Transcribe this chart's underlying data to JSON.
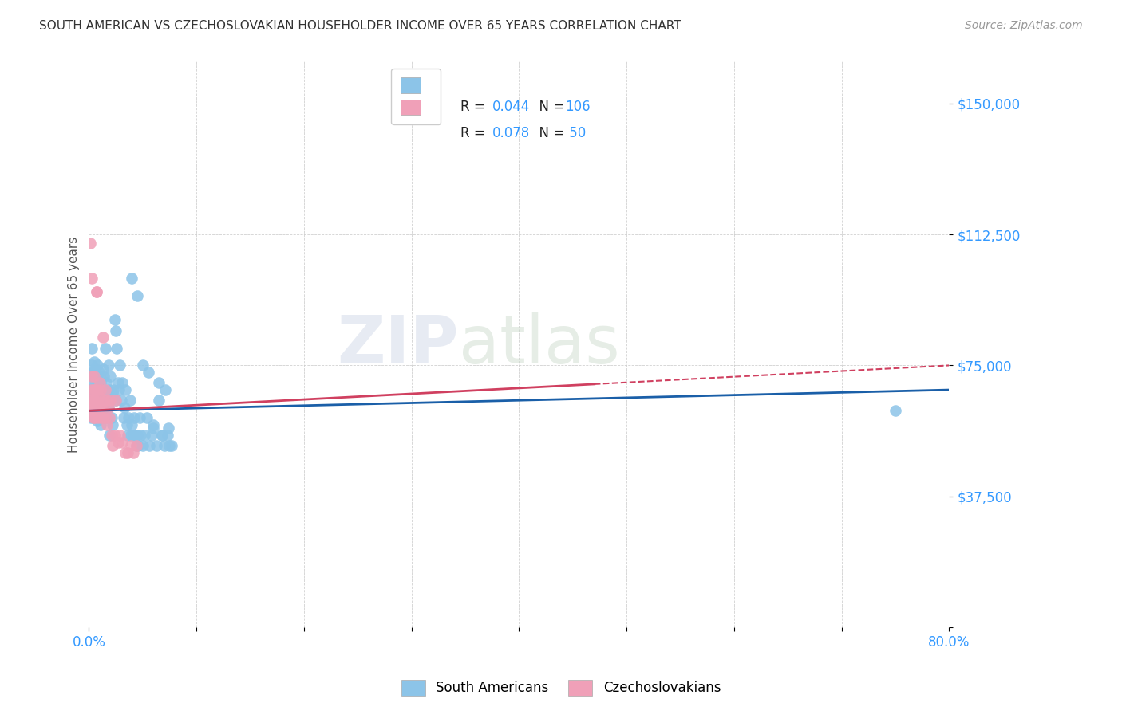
{
  "title": "SOUTH AMERICAN VS CZECHOSLOVAKIAN HOUSEHOLDER INCOME OVER 65 YEARS CORRELATION CHART",
  "source": "Source: ZipAtlas.com",
  "ylabel": "Householder Income Over 65 years",
  "yticks": [
    0,
    37500,
    75000,
    112500,
    150000
  ],
  "ytick_labels": [
    "",
    "$37,500",
    "$75,000",
    "$112,500",
    "$150,000"
  ],
  "blue_R": 0.044,
  "blue_N": 106,
  "pink_R": 0.078,
  "pink_N": 50,
  "blue_color": "#8cc4e8",
  "pink_color": "#f0a0b8",
  "blue_line_color": "#1a5fa8",
  "pink_line_color": "#d04060",
  "watermark_zip": "ZIP",
  "watermark_atlas": "atlas",
  "xlim": [
    0.0,
    0.8
  ],
  "ylim": [
    0,
    162000
  ],
  "blue_scatter_x": [
    0.001,
    0.001,
    0.002,
    0.002,
    0.002,
    0.003,
    0.003,
    0.003,
    0.003,
    0.004,
    0.004,
    0.004,
    0.004,
    0.005,
    0.005,
    0.005,
    0.005,
    0.006,
    0.006,
    0.006,
    0.006,
    0.007,
    0.007,
    0.007,
    0.008,
    0.008,
    0.008,
    0.009,
    0.009,
    0.009,
    0.01,
    0.01,
    0.01,
    0.011,
    0.011,
    0.011,
    0.012,
    0.012,
    0.013,
    0.013,
    0.014,
    0.014,
    0.015,
    0.015,
    0.016,
    0.016,
    0.017,
    0.018,
    0.018,
    0.019,
    0.019,
    0.02,
    0.02,
    0.021,
    0.022,
    0.022,
    0.023,
    0.024,
    0.025,
    0.025,
    0.026,
    0.027,
    0.028,
    0.029,
    0.03,
    0.031,
    0.032,
    0.033,
    0.034,
    0.035,
    0.036,
    0.037,
    0.038,
    0.039,
    0.04,
    0.041,
    0.042,
    0.043,
    0.044,
    0.045,
    0.046,
    0.047,
    0.048,
    0.05,
    0.052,
    0.054,
    0.056,
    0.058,
    0.06,
    0.063,
    0.065,
    0.068,
    0.07,
    0.073,
    0.075,
    0.04,
    0.045,
    0.05,
    0.055,
    0.06,
    0.065,
    0.068,
    0.071,
    0.074,
    0.077,
    0.75
  ],
  "blue_scatter_y": [
    63000,
    68000,
    72000,
    65000,
    60000,
    75000,
    70000,
    80000,
    62000,
    68000,
    73000,
    60000,
    65000,
    72000,
    69000,
    76000,
    63000,
    68000,
    74000,
    60000,
    65000,
    71000,
    67000,
    62000,
    75000,
    65000,
    59000,
    70000,
    73000,
    63000,
    68000,
    60000,
    72000,
    65000,
    58000,
    70000,
    67000,
    63000,
    74000,
    60000,
    68000,
    72000,
    65000,
    80000,
    70000,
    60000,
    67000,
    75000,
    63000,
    68000,
    55000,
    72000,
    65000,
    60000,
    67000,
    58000,
    68000,
    88000,
    85000,
    65000,
    80000,
    70000,
    68000,
    75000,
    65000,
    70000,
    60000,
    63000,
    68000,
    58000,
    55000,
    60000,
    65000,
    55000,
    58000,
    55000,
    60000,
    55000,
    52000,
    55000,
    52000,
    60000,
    55000,
    52000,
    55000,
    60000,
    52000,
    55000,
    58000,
    52000,
    65000,
    55000,
    52000,
    55000,
    52000,
    100000,
    95000,
    75000,
    73000,
    57000,
    70000,
    55000,
    68000,
    57000,
    52000,
    62000
  ],
  "pink_scatter_x": [
    0.001,
    0.001,
    0.002,
    0.002,
    0.003,
    0.003,
    0.003,
    0.004,
    0.004,
    0.004,
    0.005,
    0.005,
    0.005,
    0.006,
    0.006,
    0.007,
    0.007,
    0.007,
    0.008,
    0.008,
    0.009,
    0.009,
    0.01,
    0.01,
    0.011,
    0.011,
    0.012,
    0.013,
    0.013,
    0.014,
    0.015,
    0.015,
    0.016,
    0.017,
    0.018,
    0.019,
    0.02,
    0.021,
    0.022,
    0.024,
    0.025,
    0.027,
    0.029,
    0.031,
    0.034,
    0.036,
    0.039,
    0.041,
    0.044,
    0.001
  ],
  "pink_scatter_y": [
    63000,
    62000,
    68000,
    65000,
    100000,
    72000,
    65000,
    68000,
    63000,
    60000,
    72000,
    65000,
    60000,
    68000,
    63000,
    96000,
    96000,
    65000,
    68000,
    60000,
    66000,
    62000,
    70000,
    63000,
    68000,
    60000,
    63000,
    83000,
    60000,
    65000,
    68000,
    60000,
    65000,
    58000,
    63000,
    60000,
    65000,
    55000,
    52000,
    55000,
    65000,
    53000,
    55000,
    53000,
    50000,
    50000,
    52000,
    50000,
    52000,
    110000
  ]
}
